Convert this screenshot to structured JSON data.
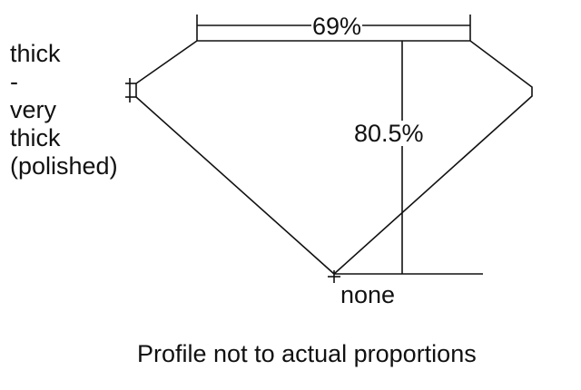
{
  "girdle_label": [
    "thick",
    "-",
    "very",
    "thick",
    "(polished)"
  ],
  "table_width_label": "69%",
  "total_depth_label": "80.5%",
  "culet_label": "none",
  "caption": "Profile not to actual proportions",
  "colors": {
    "line": "#111111",
    "background": "#ffffff"
  }
}
